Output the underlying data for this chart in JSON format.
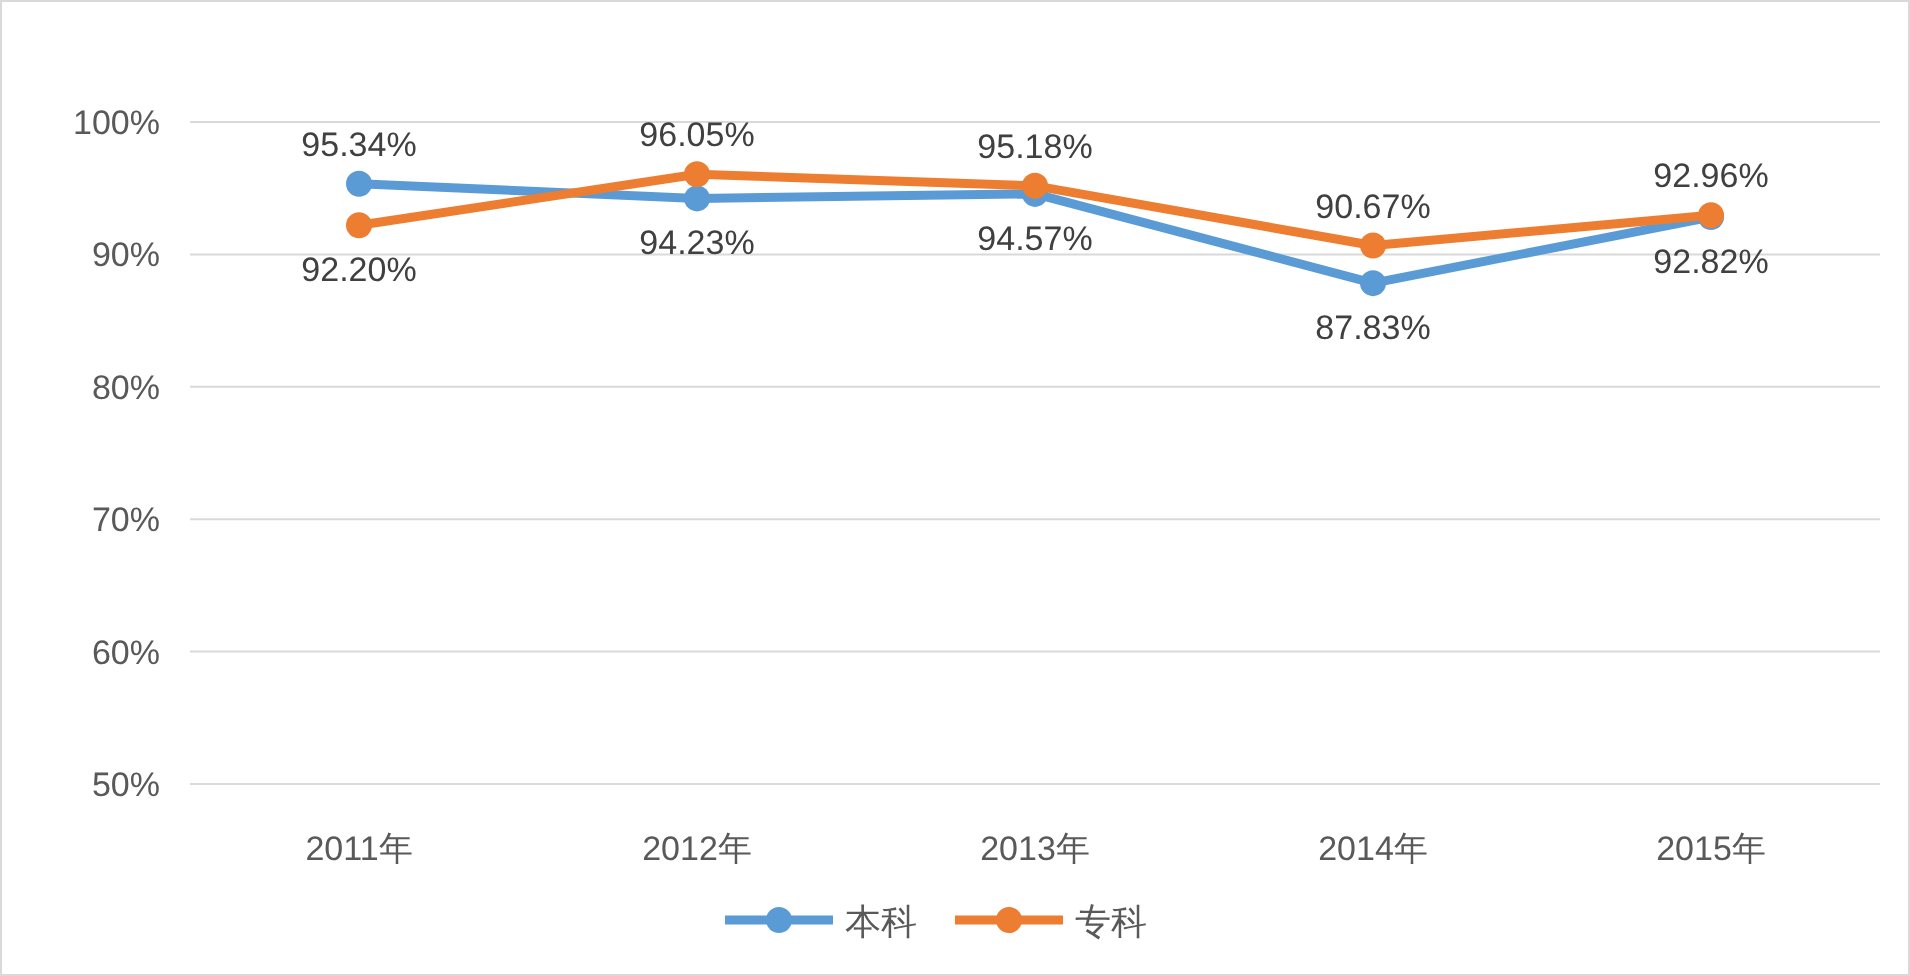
{
  "chart_data": {
    "type": "line",
    "categories": [
      "2011年",
      "2012年",
      "2013年",
      "2014年",
      "2015年"
    ],
    "series": [
      {
        "name": "本科",
        "color": "#5b9bd5",
        "values": [
          95.34,
          94.23,
          94.57,
          87.83,
          92.82
        ],
        "value_labels": [
          "95.34%",
          "94.23%",
          "94.57%",
          "87.83%",
          "92.82%"
        ]
      },
      {
        "name": "专科",
        "color": "#ed7d31",
        "values": [
          92.2,
          96.05,
          95.18,
          90.67,
          92.96
        ],
        "value_labels": [
          "92.20%",
          "96.05%",
          "95.18%",
          "90.67%",
          "92.96%"
        ]
      }
    ],
    "ylim": [
      50,
      100
    ],
    "yticks": [
      {
        "value": 50,
        "label": "50%"
      },
      {
        "value": 60,
        "label": "60%"
      },
      {
        "value": 70,
        "label": "70%"
      },
      {
        "value": 80,
        "label": "80%"
      },
      {
        "value": 90,
        "label": "90%"
      },
      {
        "value": 100,
        "label": "100%"
      }
    ],
    "grid": "y",
    "legend": "bottom",
    "marker": "circle"
  }
}
